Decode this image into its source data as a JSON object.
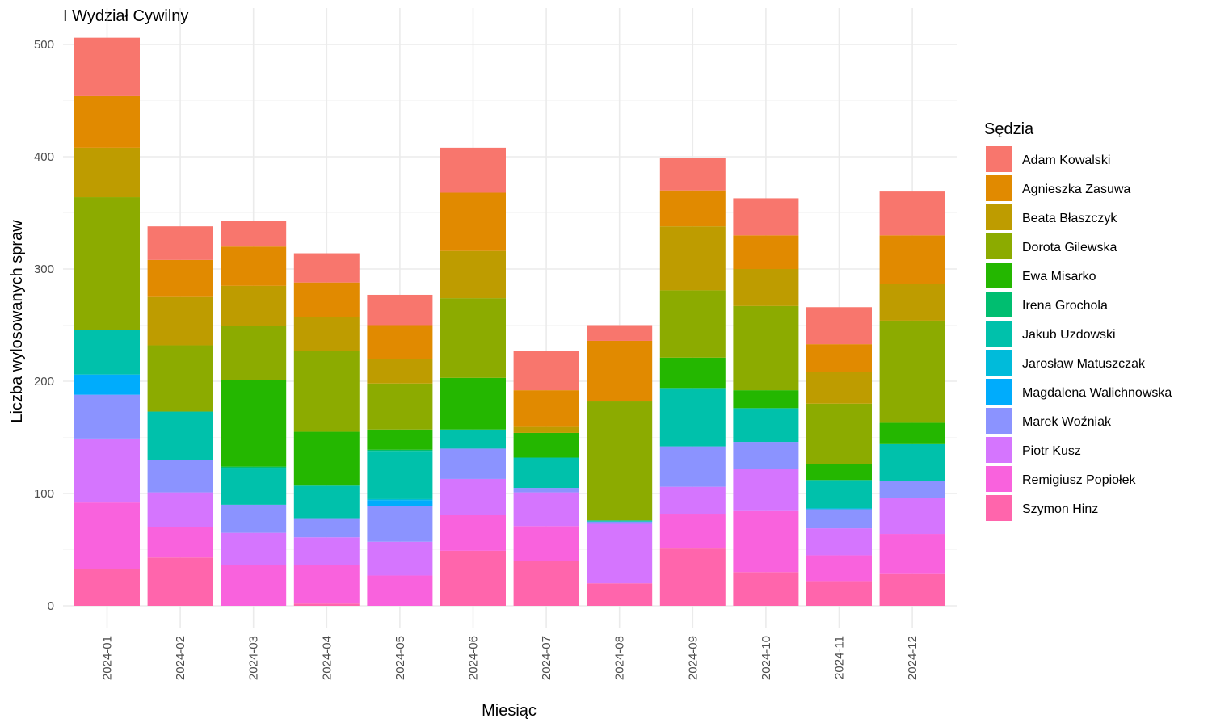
{
  "chart_data": {
    "type": "bar",
    "stacked": true,
    "title": "I Wydział Cywilny",
    "xlabel": "Miesiąc",
    "ylabel": "Liczba wylosowanych spraw",
    "ylim": [
      0,
      520
    ],
    "yticks": [
      0,
      100,
      200,
      300,
      400,
      500
    ],
    "grid": true,
    "legend_title": "Sędzia",
    "legend_position": "right",
    "categories": [
      "2024-01",
      "2024-02",
      "2024-03",
      "2024-04",
      "2024-05",
      "2024-06",
      "2024-07",
      "2024-08",
      "2024-09",
      "2024-10",
      "2024-11",
      "2024-12"
    ],
    "series": [
      {
        "name": "Adam Kowalski",
        "color": "#F8766D",
        "values": [
          52,
          30,
          23,
          26,
          27,
          40,
          35,
          14,
          29,
          33,
          33,
          39
        ]
      },
      {
        "name": "Agnieszka Zasuwa",
        "color": "#E18A00",
        "values": [
          46,
          33,
          35,
          31,
          30,
          52,
          32,
          54,
          32,
          30,
          25,
          43
        ]
      },
      {
        "name": "Beata Błaszczyk",
        "color": "#BE9C00",
        "values": [
          44,
          43,
          36,
          30,
          22,
          42,
          6,
          0,
          57,
          33,
          28,
          33
        ]
      },
      {
        "name": "Dorota Gilewska",
        "color": "#8CAB00",
        "values": [
          118,
          59,
          48,
          72,
          41,
          71,
          0,
          106,
          60,
          75,
          54,
          91
        ]
      },
      {
        "name": "Ewa Misarko",
        "color": "#24B700",
        "values": [
          0,
          0,
          77,
          48,
          18,
          46,
          22,
          0,
          27,
          16,
          14,
          19
        ]
      },
      {
        "name": "Irena Grochola",
        "color": "#00BE70",
        "values": [
          0,
          0,
          1,
          0,
          1,
          0,
          0,
          0,
          0,
          0,
          0,
          0
        ]
      },
      {
        "name": "Jakub Uzdowski",
        "color": "#00C1AB",
        "values": [
          40,
          43,
          33,
          29,
          43,
          17,
          27,
          1,
          52,
          30,
          25,
          33
        ]
      },
      {
        "name": "Jarosław Matuszczak",
        "color": "#00BBDA",
        "values": [
          0,
          0,
          0,
          0,
          1,
          0,
          0,
          0,
          0,
          0,
          1,
          0
        ]
      },
      {
        "name": "Magdalena Walichnowska",
        "color": "#00ACFC",
        "values": [
          18,
          0,
          0,
          0,
          5,
          0,
          0,
          0,
          0,
          0,
          0,
          0
        ]
      },
      {
        "name": "Marek Woźniak",
        "color": "#8B93FF",
        "values": [
          39,
          29,
          25,
          17,
          32,
          27,
          4,
          2,
          36,
          24,
          17,
          15
        ]
      },
      {
        "name": "Piotr Kusz",
        "color": "#D575FE",
        "values": [
          57,
          31,
          29,
          25,
          30,
          32,
          30,
          53,
          24,
          37,
          24,
          32
        ]
      },
      {
        "name": "Remigiusz Popiołek",
        "color": "#F962DD",
        "values": [
          59,
          27,
          36,
          34,
          27,
          32,
          31,
          0,
          31,
          55,
          23,
          35
        ]
      },
      {
        "name": "Szymon Hinz",
        "color": "#FF65AC",
        "values": [
          33,
          43,
          0,
          2,
          0,
          49,
          40,
          20,
          51,
          30,
          22,
          29
        ]
      }
    ]
  }
}
